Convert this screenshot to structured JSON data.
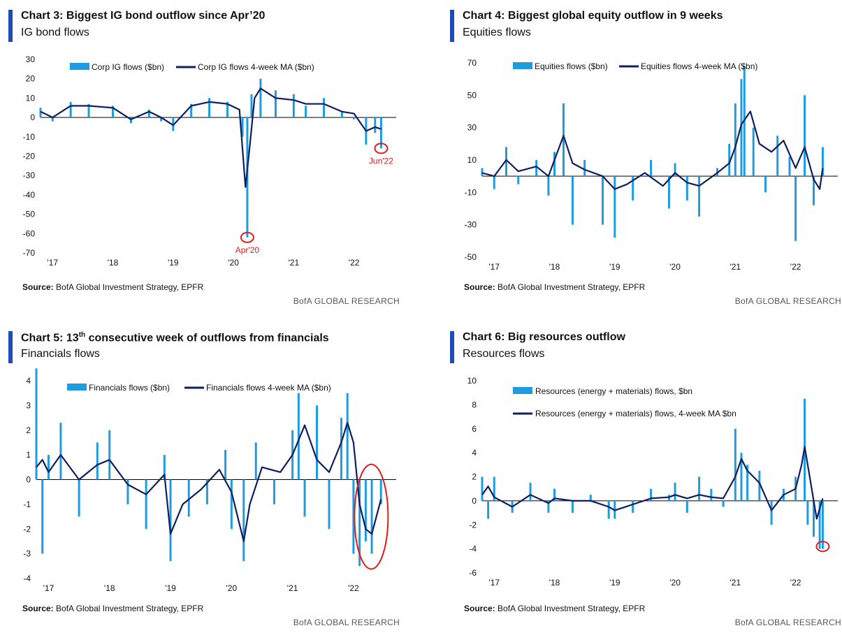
{
  "colors": {
    "accent": "#1f4bb8",
    "bar": "#1f9be0",
    "ma": "#0c1f5f",
    "annotation": "#e41a1c",
    "text": "#111111",
    "brand_text": "#555555"
  },
  "source_label": "Source:",
  "source_text": "BofA Global Investment Strategy, EPFR",
  "brand": "BofA GLOBAL RESEARCH",
  "chart_data": [
    {
      "type": "bar",
      "title": "Chart 3: Biggest IG bond outflow since Apr’20",
      "subtitle": "IG bond flows",
      "xlabel": "",
      "ylabel": "",
      "ylim": [
        -70,
        30
      ],
      "yticks": [
        "30",
        "20",
        "10",
        "0",
        "-10",
        "-20",
        "-30",
        "-40",
        "-50",
        "-60",
        "-70"
      ],
      "xticks": [
        "'17",
        "'18",
        "'19",
        "'20",
        "'21",
        "'22"
      ],
      "legend": [
        "Corp IG flows ($bn)",
        "Corp IG flows 4-week MA ($bn)"
      ],
      "legend_position": "top",
      "series": [
        {
          "name": "Corp IG flows ($bn)",
          "type": "bar",
          "x": [
            2016.8,
            2017.0,
            2017.3,
            2017.6,
            2018.0,
            2018.3,
            2018.6,
            2018.8,
            2019.0,
            2019.3,
            2019.6,
            2019.9,
            2020.15,
            2020.23,
            2020.3,
            2020.45,
            2020.7,
            2021.0,
            2021.2,
            2021.5,
            2021.8,
            2022.0,
            2022.2,
            2022.35,
            2022.45
          ],
          "values": [
            5,
            -2,
            8,
            7,
            6,
            -3,
            4,
            -2,
            -7,
            7,
            10,
            8,
            -10,
            -62,
            12,
            20,
            14,
            12,
            6,
            10,
            3,
            -1,
            -14,
            -8,
            -16
          ]
        },
        {
          "name": "Corp IG flows 4-week MA ($bn)",
          "type": "line",
          "x": [
            2016.8,
            2017.0,
            2017.3,
            2017.6,
            2018.0,
            2018.3,
            2018.6,
            2018.8,
            2019.0,
            2019.3,
            2019.6,
            2019.9,
            2020.1,
            2020.2,
            2020.27,
            2020.35,
            2020.45,
            2020.7,
            2021.0,
            2021.2,
            2021.5,
            2021.8,
            2022.0,
            2022.2,
            2022.35,
            2022.45
          ],
          "values": [
            3,
            0,
            6,
            6,
            5,
            -1,
            3,
            0,
            -4,
            6,
            8,
            7,
            4,
            -36,
            -15,
            10,
            15,
            10,
            9,
            7,
            7,
            3,
            2,
            -7,
            -5,
            -6
          ]
        }
      ],
      "annotations": [
        {
          "label": "Apr'20",
          "x": 2020.23,
          "y": -62
        },
        {
          "label": "Jun'22",
          "x": 2022.45,
          "y": -16
        }
      ]
    },
    {
      "type": "bar",
      "title": "Chart 4: Biggest global equity outflow in 9 weeks",
      "subtitle": "Equities flows",
      "xlabel": "",
      "ylabel": "",
      "ylim": [
        -50,
        70
      ],
      "yticks": [
        "70",
        "50",
        "30",
        "10",
        "-10",
        "-30",
        "-50"
      ],
      "xticks": [
        "'17",
        "'18",
        "'19",
        "'20",
        "'21",
        "'22"
      ],
      "legend": [
        "Equities flows ($bn)",
        "Equities flows 4-week MA ($bn)"
      ],
      "legend_position": "top",
      "series": [
        {
          "name": "Equities flows ($bn)",
          "type": "bar",
          "x": [
            2016.8,
            2017.0,
            2017.2,
            2017.4,
            2017.7,
            2017.9,
            2018.0,
            2018.15,
            2018.3,
            2018.5,
            2018.8,
            2019.0,
            2019.3,
            2019.6,
            2019.9,
            2020.0,
            2020.2,
            2020.4,
            2020.7,
            2020.9,
            2021.0,
            2021.1,
            2021.15,
            2021.3,
            2021.5,
            2021.7,
            2021.9,
            2022.0,
            2022.15,
            2022.3,
            2022.45
          ],
          "values": [
            5,
            -8,
            18,
            -5,
            10,
            -12,
            15,
            45,
            -30,
            10,
            -30,
            -38,
            -15,
            10,
            -20,
            8,
            -15,
            -25,
            5,
            20,
            45,
            60,
            68,
            30,
            -10,
            25,
            12,
            -40,
            50,
            -18,
            18
          ]
        },
        {
          "name": "Equities flows 4-week MA ($bn)",
          "type": "line",
          "x": [
            2016.8,
            2017.0,
            2017.2,
            2017.4,
            2017.7,
            2017.9,
            2018.0,
            2018.15,
            2018.3,
            2018.5,
            2018.8,
            2019.0,
            2019.2,
            2019.5,
            2019.8,
            2020.0,
            2020.2,
            2020.4,
            2020.7,
            2020.9,
            2021.0,
            2021.1,
            2021.25,
            2021.4,
            2021.6,
            2021.8,
            2022.0,
            2022.15,
            2022.3,
            2022.4,
            2022.45
          ],
          "values": [
            2,
            0,
            10,
            3,
            6,
            0,
            10,
            25,
            8,
            4,
            0,
            -8,
            -5,
            2,
            -6,
            2,
            -4,
            -6,
            2,
            8,
            18,
            32,
            40,
            20,
            15,
            22,
            5,
            18,
            -2,
            -8,
            5
          ]
        }
      ]
    },
    {
      "type": "bar",
      "title": "Chart 5: 13th consecutive week of outflows from financials",
      "title_main": "Chart 5: 13",
      "title_sup": "th",
      "title_rest": " consecutive week of outflows from financials",
      "subtitle": "Financials flows",
      "xlabel": "",
      "ylabel": "",
      "ylim": [
        -4,
        4
      ],
      "yticks": [
        "4",
        "3",
        "2",
        "1",
        "0",
        "-1",
        "-2",
        "-3",
        "-4"
      ],
      "xticks": [
        "'17",
        "'18",
        "'19",
        "'20",
        "'21",
        "'22"
      ],
      "legend": [
        "Financials flows ($bn)",
        "Financials flows 4-week MA ($bn)"
      ],
      "legend_position": "top",
      "series": [
        {
          "name": "Financials flows ($bn)",
          "type": "bar",
          "x": [
            2016.8,
            2016.9,
            2017.0,
            2017.2,
            2017.5,
            2017.8,
            2018.0,
            2018.3,
            2018.6,
            2018.9,
            2019.0,
            2019.3,
            2019.6,
            2019.9,
            2020.0,
            2020.2,
            2020.4,
            2020.7,
            2021.0,
            2021.1,
            2021.2,
            2021.4,
            2021.6,
            2021.8,
            2021.9,
            2022.0,
            2022.1,
            2022.2,
            2022.3,
            2022.45
          ],
          "values": [
            4.5,
            -3,
            1,
            2.3,
            -1.5,
            1.5,
            2,
            -1,
            -2,
            1,
            -3.3,
            -1.5,
            -1,
            1.2,
            -2,
            -3.3,
            1.5,
            -1,
            2,
            3.5,
            -1.5,
            3,
            -2,
            2.5,
            3.5,
            -3,
            -3.5,
            -2.5,
            -3,
            -1
          ]
        },
        {
          "name": "Financials flows 4-week MA ($bn)",
          "type": "line",
          "x": [
            2016.8,
            2016.9,
            2017.0,
            2017.2,
            2017.5,
            2017.8,
            2018.0,
            2018.3,
            2018.6,
            2018.9,
            2019.0,
            2019.2,
            2019.5,
            2019.8,
            2020.0,
            2020.2,
            2020.3,
            2020.5,
            2020.8,
            2021.0,
            2021.2,
            2021.4,
            2021.6,
            2021.8,
            2021.9,
            2022.0,
            2022.1,
            2022.2,
            2022.3,
            2022.45
          ],
          "values": [
            0.5,
            0.8,
            0.3,
            1,
            0,
            0.6,
            0.8,
            -0.2,
            -0.6,
            0.2,
            -2.2,
            -1,
            -0.4,
            0.4,
            -0.5,
            -2.5,
            -1,
            0.5,
            0.3,
            1,
            2.2,
            0.8,
            0.3,
            1.5,
            2.3,
            1.5,
            -1,
            -2,
            -2.2,
            -0.8
          ]
        }
      ],
      "annotations": [
        {
          "label": "",
          "x": 2022.2,
          "y": -1.5
        }
      ]
    },
    {
      "type": "bar",
      "title": "Chart 6: Big resources outflow",
      "subtitle": "Resources flows",
      "xlabel": "",
      "ylabel": "",
      "ylim": [
        -6,
        10
      ],
      "yticks": [
        "10",
        "8",
        "6",
        "4",
        "2",
        "0",
        "-2",
        "-4",
        "-6"
      ],
      "xticks": [
        "'17",
        "'18",
        "'19",
        "'20",
        "'21",
        "'22"
      ],
      "legend": [
        "Resources (energy + materials) flows, $bn",
        "Resources (energy + materials) flows, 4-week MA $bn"
      ],
      "legend_position": "top",
      "series": [
        {
          "name": "Resources (energy + materials) flows, $bn",
          "type": "bar",
          "x": [
            2016.8,
            2016.9,
            2017.0,
            2017.3,
            2017.6,
            2017.9,
            2018.0,
            2018.3,
            2018.6,
            2018.9,
            2019.0,
            2019.3,
            2019.6,
            2019.9,
            2020.0,
            2020.2,
            2020.4,
            2020.6,
            2020.8,
            2021.0,
            2021.1,
            2021.2,
            2021.4,
            2021.6,
            2021.8,
            2022.0,
            2022.15,
            2022.2,
            2022.3,
            2022.4,
            2022.45
          ],
          "values": [
            2,
            -1.5,
            2,
            -1,
            1.5,
            -1,
            1,
            -1,
            0.5,
            -1.5,
            -1.5,
            -1,
            1,
            0.5,
            1.5,
            -1,
            2,
            1,
            -0.5,
            6,
            4,
            3,
            2.5,
            -2,
            1,
            2,
            8.5,
            -2,
            -3,
            -4,
            -4
          ]
        },
        {
          "name": "Resources (energy + materials) flows, 4-week MA $bn",
          "type": "line",
          "x": [
            2016.8,
            2016.9,
            2017.0,
            2017.3,
            2017.6,
            2017.9,
            2018.0,
            2018.3,
            2018.6,
            2018.9,
            2019.0,
            2019.3,
            2019.6,
            2019.9,
            2020.0,
            2020.2,
            2020.4,
            2020.6,
            2020.8,
            2021.0,
            2021.1,
            2021.2,
            2021.4,
            2021.6,
            2021.8,
            2022.0,
            2022.1,
            2022.15,
            2022.25,
            2022.35,
            2022.45
          ],
          "values": [
            0.5,
            1.2,
            0.3,
            -0.5,
            0.5,
            -0.2,
            0.2,
            0,
            0,
            -0.5,
            -0.8,
            -0.3,
            0.2,
            0.3,
            0.5,
            0.2,
            0.5,
            0.3,
            0.2,
            2,
            3.5,
            2.5,
            1.5,
            -0.8,
            0.5,
            1,
            3,
            4.5,
            1.5,
            -1.5,
            0.2
          ]
        }
      ],
      "annotations": [
        {
          "label": "",
          "x": 2022.45,
          "y": -3.8
        }
      ]
    }
  ]
}
